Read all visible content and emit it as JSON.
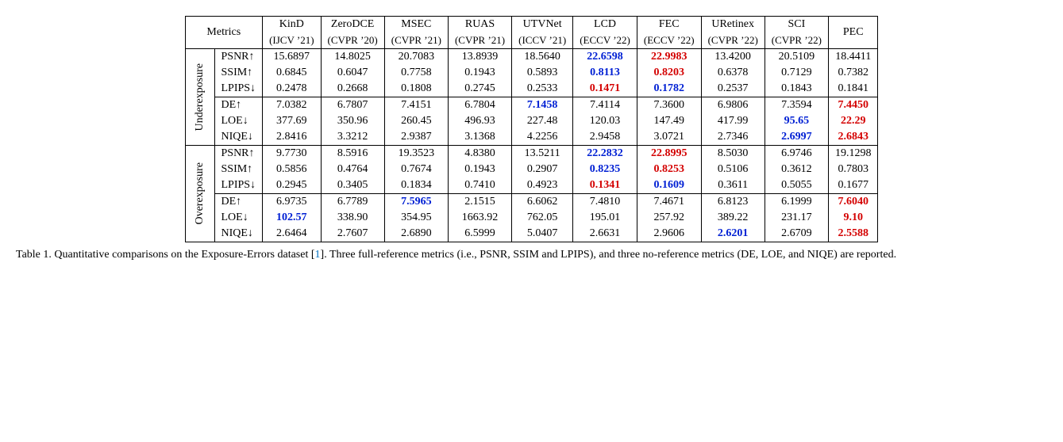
{
  "header": {
    "metrics_label": "Metrics",
    "methods": [
      {
        "name": "KinD",
        "venue": "(IJCV ’21)"
      },
      {
        "name": "ZeroDCE",
        "venue": "(CVPR ’20)"
      },
      {
        "name": "MSEC",
        "venue": "(CVPR ’21)"
      },
      {
        "name": "RUAS",
        "venue": "(CVPR ’21)"
      },
      {
        "name": "UTVNet",
        "venue": "(ICCV ’21)"
      },
      {
        "name": "LCD",
        "venue": "(ECCV ’22)"
      },
      {
        "name": "FEC",
        "venue": "(ECCV ’22)"
      },
      {
        "name": "URetinex",
        "venue": "(CVPR ’22)"
      },
      {
        "name": "SCI",
        "venue": "(CVPR ’22)"
      },
      {
        "name": "PEC",
        "venue": ""
      }
    ]
  },
  "groups": [
    {
      "label": "Underexposure",
      "rows": [
        {
          "metric": "PSNR↑",
          "vals": [
            {
              "v": "15.6897"
            },
            {
              "v": "14.8025"
            },
            {
              "v": "20.7083"
            },
            {
              "v": "13.8939"
            },
            {
              "v": "18.5640"
            },
            {
              "v": "22.6598",
              "c": "blue"
            },
            {
              "v": "22.9983",
              "c": "red"
            },
            {
              "v": "13.4200"
            },
            {
              "v": "20.5109"
            },
            {
              "v": "18.4411"
            }
          ]
        },
        {
          "metric": "SSIM↑",
          "vals": [
            {
              "v": "0.6845"
            },
            {
              "v": "0.6047"
            },
            {
              "v": "0.7758"
            },
            {
              "v": "0.1943"
            },
            {
              "v": "0.5893"
            },
            {
              "v": "0.8113",
              "c": "blue"
            },
            {
              "v": "0.8203",
              "c": "red"
            },
            {
              "v": "0.6378"
            },
            {
              "v": "0.7129"
            },
            {
              "v": "0.7382"
            }
          ]
        },
        {
          "metric": "LPIPS↓",
          "vals": [
            {
              "v": "0.2478"
            },
            {
              "v": "0.2668"
            },
            {
              "v": "0.1808"
            },
            {
              "v": "0.2745"
            },
            {
              "v": "0.2533"
            },
            {
              "v": "0.1471",
              "c": "red"
            },
            {
              "v": "0.1782",
              "c": "blue"
            },
            {
              "v": "0.2537"
            },
            {
              "v": "0.1843"
            },
            {
              "v": "0.1841"
            }
          ],
          "border": "mid"
        },
        {
          "metric": "DE↑",
          "vals": [
            {
              "v": "7.0382"
            },
            {
              "v": "6.7807"
            },
            {
              "v": "7.4151"
            },
            {
              "v": "6.7804"
            },
            {
              "v": "7.1458",
              "c": "blue"
            },
            {
              "v": "7.4114"
            },
            {
              "v": "7.3600"
            },
            {
              "v": "6.9806"
            },
            {
              "v": "7.3594"
            },
            {
              "v": "7.4450",
              "c": "red"
            }
          ]
        },
        {
          "metric": "LOE↓",
          "vals": [
            {
              "v": "377.69"
            },
            {
              "v": "350.96"
            },
            {
              "v": "260.45"
            },
            {
              "v": "496.93"
            },
            {
              "v": "227.48"
            },
            {
              "v": "120.03"
            },
            {
              "v": "147.49"
            },
            {
              "v": "417.99"
            },
            {
              "v": "95.65",
              "c": "blue"
            },
            {
              "v": "22.29",
              "c": "red"
            }
          ]
        },
        {
          "metric": "NIQE↓",
          "vals": [
            {
              "v": "2.8416"
            },
            {
              "v": "3.3212"
            },
            {
              "v": "2.9387"
            },
            {
              "v": "3.1368"
            },
            {
              "v": "4.2256"
            },
            {
              "v": "2.9458"
            },
            {
              "v": "3.0721"
            },
            {
              "v": "2.7346"
            },
            {
              "v": "2.6997",
              "c": "blue"
            },
            {
              "v": "2.6843",
              "c": "red"
            }
          ]
        }
      ]
    },
    {
      "label": "Overexposure",
      "rows": [
        {
          "metric": "PSNR↑",
          "vals": [
            {
              "v": "9.7730"
            },
            {
              "v": "8.5916"
            },
            {
              "v": "19.3523"
            },
            {
              "v": "4.8380"
            },
            {
              "v": "13.5211"
            },
            {
              "v": "22.2832",
              "c": "blue"
            },
            {
              "v": "22.8995",
              "c": "red"
            },
            {
              "v": "8.5030"
            },
            {
              "v": "6.9746"
            },
            {
              "v": "19.1298"
            }
          ]
        },
        {
          "metric": "SSIM↑",
          "vals": [
            {
              "v": "0.5856"
            },
            {
              "v": "0.4764"
            },
            {
              "v": "0.7674"
            },
            {
              "v": "0.1943"
            },
            {
              "v": "0.2907"
            },
            {
              "v": "0.8235",
              "c": "blue"
            },
            {
              "v": "0.8253",
              "c": "red"
            },
            {
              "v": "0.5106"
            },
            {
              "v": "0.3612"
            },
            {
              "v": "0.7803"
            }
          ]
        },
        {
          "metric": "LPIPS↓",
          "vals": [
            {
              "v": "0.2945"
            },
            {
              "v": "0.3405"
            },
            {
              "v": "0.1834"
            },
            {
              "v": "0.7410"
            },
            {
              "v": "0.4923"
            },
            {
              "v": "0.1341",
              "c": "red"
            },
            {
              "v": "0.1609",
              "c": "blue"
            },
            {
              "v": "0.3611"
            },
            {
              "v": "0.5055"
            },
            {
              "v": "0.1677"
            }
          ],
          "border": "mid"
        },
        {
          "metric": "DE↑",
          "vals": [
            {
              "v": "6.9735"
            },
            {
              "v": "6.7789"
            },
            {
              "v": "7.5965",
              "c": "blue"
            },
            {
              "v": "2.1515"
            },
            {
              "v": "6.6062"
            },
            {
              "v": "7.4810"
            },
            {
              "v": "7.4671"
            },
            {
              "v": "6.8123"
            },
            {
              "v": "6.1999"
            },
            {
              "v": "7.6040",
              "c": "red"
            }
          ]
        },
        {
          "metric": "LOE↓",
          "vals": [
            {
              "v": "102.57",
              "c": "blue"
            },
            {
              "v": "338.90"
            },
            {
              "v": "354.95"
            },
            {
              "v": "1663.92"
            },
            {
              "v": "762.05"
            },
            {
              "v": "195.01"
            },
            {
              "v": "257.92"
            },
            {
              "v": "389.22"
            },
            {
              "v": "231.17"
            },
            {
              "v": "9.10",
              "c": "red"
            }
          ]
        },
        {
          "metric": "NIQE↓",
          "vals": [
            {
              "v": "2.6464"
            },
            {
              "v": "2.7607"
            },
            {
              "v": "2.6890"
            },
            {
              "v": "6.5999"
            },
            {
              "v": "5.0407"
            },
            {
              "v": "2.6631"
            },
            {
              "v": "2.9606"
            },
            {
              "v": "2.6201",
              "c": "blue"
            },
            {
              "v": "2.6709"
            },
            {
              "v": "2.5588",
              "c": "red"
            }
          ]
        }
      ]
    }
  ],
  "caption": {
    "prefix": "Table 1. Quantitative comparisons on the Exposure-Errors dataset [",
    "cite": "1",
    "suffix": "]. Three full-reference metrics (i.e., PSNR, SSIM and LPIPS), and three no-reference metrics (DE, LOE, and NIQE) are reported."
  },
  "style": {
    "highlight_red": "#d40000",
    "highlight_blue": "#0020d4",
    "font_family": "Times New Roman",
    "base_fontsize": 14
  }
}
